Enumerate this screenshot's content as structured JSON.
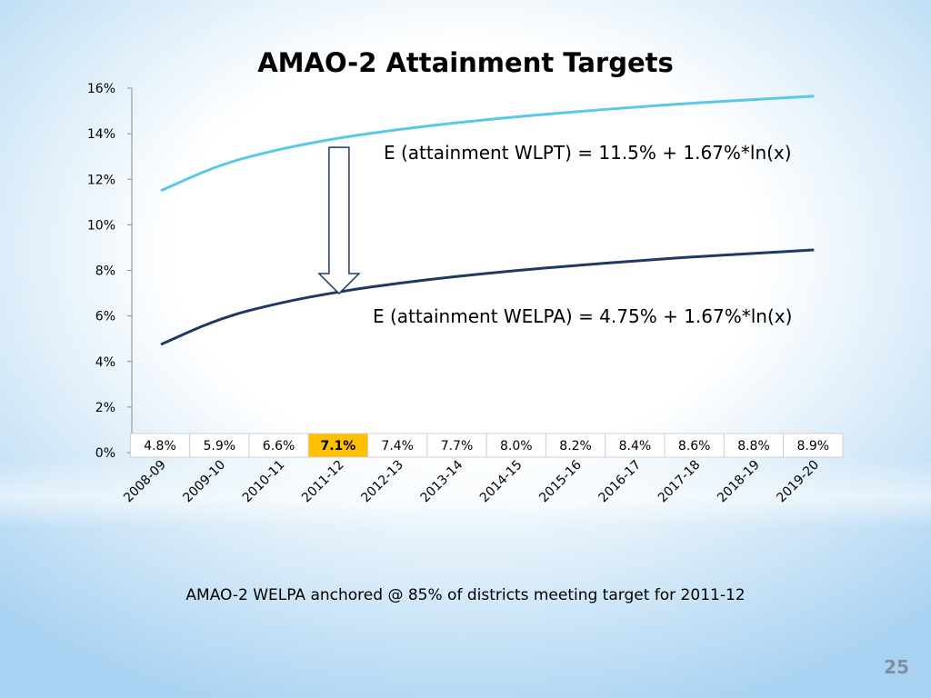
{
  "slide": {
    "title": "AMAO-2 Attainment Targets",
    "caption": "AMAO-2 WELPA anchored @ 85% of districts meeting target for 2011-12",
    "page_number": "25"
  },
  "chart_data": {
    "type": "line",
    "categories": [
      "2008-09",
      "2009-10",
      "2010-11",
      "2011-12",
      "2012-13",
      "2013-14",
      "2014-15",
      "2015-16",
      "2016-17",
      "2017-18",
      "2018-19",
      "2019-20"
    ],
    "ylim": [
      0,
      16
    ],
    "yticks": [
      "0%",
      "2%",
      "4%",
      "6%",
      "8%",
      "10%",
      "12%",
      "14%",
      "16%"
    ],
    "series": [
      {
        "name": "E (attainment WLPT) = 11.5% + 1.67%*ln(x)",
        "color": "#5bc8e6",
        "values": [
          11.5,
          12.66,
          13.33,
          13.82,
          14.19,
          14.49,
          14.75,
          14.97,
          15.17,
          15.35,
          15.5,
          15.65
        ]
      },
      {
        "name": "E (attainment WELPA) = 4.75% + 1.67%*ln(x)",
        "color": "#1f3864",
        "values": [
          4.75,
          5.91,
          6.58,
          7.07,
          7.44,
          7.74,
          8.0,
          8.22,
          8.42,
          8.6,
          8.75,
          8.9
        ]
      }
    ],
    "data_table": {
      "values": [
        "4.8%",
        "5.9%",
        "6.6%",
        "7.1%",
        "7.4%",
        "7.7%",
        "8.0%",
        "8.2%",
        "8.4%",
        "8.6%",
        "8.8%",
        "8.9%"
      ],
      "highlight_index": 3,
      "highlight_color": "#ffc000"
    },
    "annotation": {
      "type": "down-arrow",
      "from_value": 13.8,
      "to_value": 7.1,
      "category_index": 3
    },
    "grid": false
  }
}
